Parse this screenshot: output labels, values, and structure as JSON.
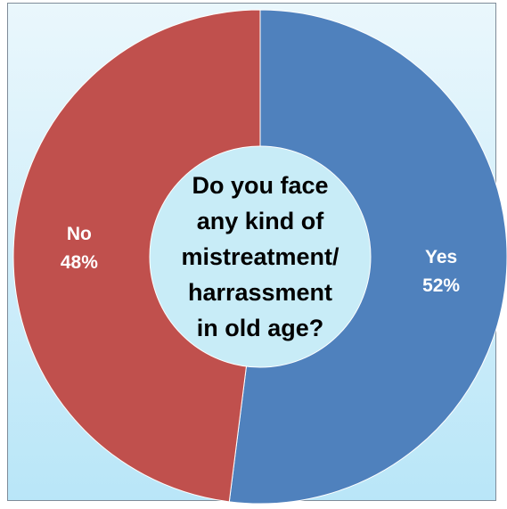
{
  "chart_data": {
    "type": "pie",
    "style": "doughnut",
    "title": "",
    "center_text": [
      "Do you face",
      "any kind of",
      "mistreatment/",
      "harrassment",
      "in old age?"
    ],
    "categories": [
      "Yes",
      "No"
    ],
    "values": [
      52,
      48
    ],
    "value_labels": [
      "52%",
      "48%"
    ],
    "colors": [
      "#4f81bd",
      "#c0504d"
    ],
    "center_fill": "#c8ecf7",
    "label_color": "#ffffff",
    "center_text_color": "#000000"
  }
}
